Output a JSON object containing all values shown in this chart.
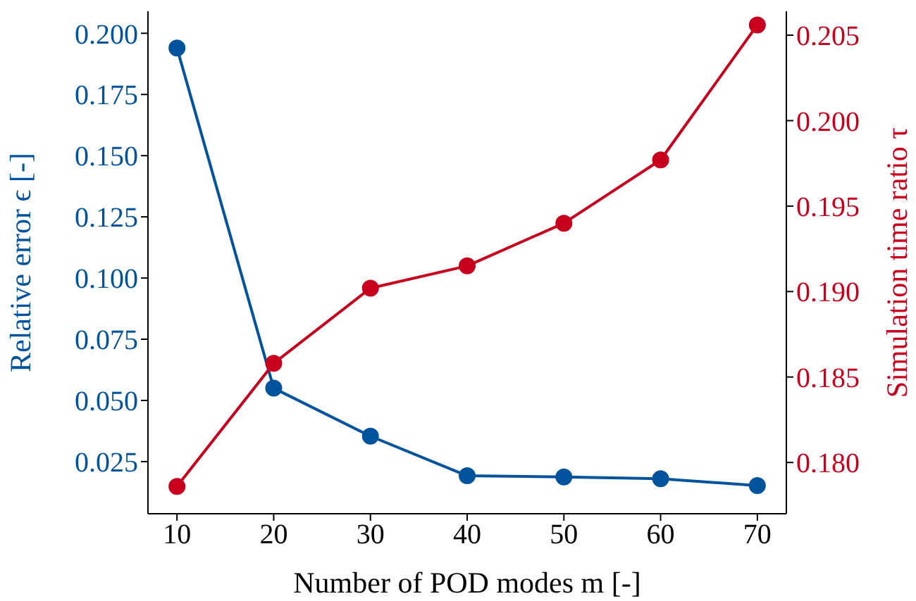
{
  "chart_data": {
    "type": "line",
    "xlabel": "Number of POD modes m [-]",
    "ylabel": "Relative error ϵ [-]",
    "y2label": "Simulation time ratio τ",
    "x": [
      10,
      20,
      30,
      40,
      50,
      60,
      70
    ],
    "series": [
      {
        "color": "#00539c",
        "values": [
          0.194,
          0.055,
          0.0354,
          0.0192,
          0.0187,
          0.018,
          0.0152
        ]
      },
      {
        "color": "#c8001e",
        "axis": "y2",
        "values": [
          0.1786,
          0.1858,
          0.1902,
          0.1915,
          0.194,
          0.1977,
          0.2056
        ]
      }
    ],
    "xlim": [
      7,
      73
    ],
    "xticks": [
      10,
      20,
      30,
      40,
      50,
      60,
      70
    ],
    "ylim": [
      0.0037,
      0.209
    ],
    "yticks": [
      0.025,
      {
        "value": 0.05,
        "label": "0.050"
      },
      0.075,
      {
        "value": 0.1,
        "label": "0.100"
      },
      0.125,
      {
        "value": 0.15,
        "label": "0.150"
      },
      0.175,
      {
        "value": 0.2,
        "label": "0.200"
      }
    ],
    "y2lim": [
      0.177,
      0.2064
    ],
    "y2ticks": [
      {
        "value": 0.18,
        "label": "0.180"
      },
      0.185,
      {
        "value": 0.19,
        "label": "0.190"
      },
      0.195,
      {
        "value": 0.2,
        "label": "0.200"
      },
      0.205
    ],
    "marker": "circle",
    "line_style": "solid"
  }
}
